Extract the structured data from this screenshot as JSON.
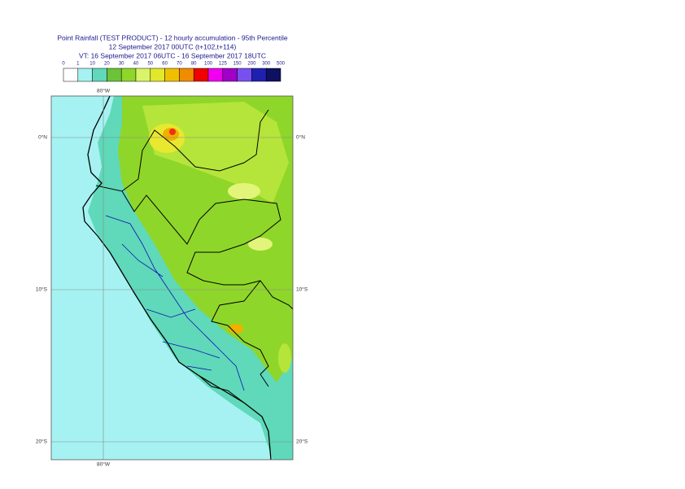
{
  "header": {
    "title": "Point Rainfall (TEST PRODUCT) - 12 hourly accumulation - 95th Percentile",
    "run": "12 September 2017 00UTC (t+102,t+114)",
    "valid": "VT: 16 September 2017 06UTC - 16 September 2017 18UTC"
  },
  "legend": {
    "labels": [
      "0",
      "1",
      "10",
      "20",
      "30",
      "40",
      "50",
      "60",
      "70",
      "80",
      "100",
      "125",
      "150",
      "200",
      "300",
      "500"
    ],
    "colors": [
      "#ffffff",
      "#a6f2f2",
      "#5fd9b9",
      "#6cc238",
      "#8fd62a",
      "#d8f56a",
      "#e2e82a",
      "#f0c000",
      "#f08c00",
      "#f00000",
      "#f000f0",
      "#a000c8",
      "#7850f0",
      "#2020b0",
      "#101060"
    ]
  },
  "map": {
    "lon_top": "80°W",
    "lon_bottom": "80°W",
    "lat_left": [
      "0°N",
      "10°S",
      "20°S"
    ],
    "lat_right": [
      "0°N",
      "10°S",
      "20°S"
    ]
  }
}
